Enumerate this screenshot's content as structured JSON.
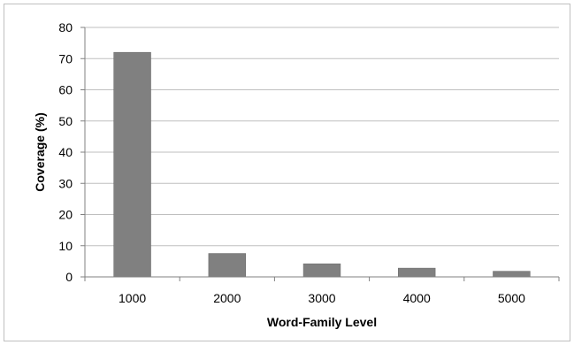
{
  "chart_data": {
    "type": "bar",
    "categories": [
      "1000",
      "2000",
      "3000",
      "4000",
      "5000"
    ],
    "values": [
      72,
      7.5,
      4.2,
      2.8,
      1.8
    ],
    "xlabel": "Word-Family Level",
    "ylabel": "Coverage (%)",
    "ylim": [
      0,
      80
    ],
    "yticks": [
      0,
      10,
      20,
      30,
      40,
      50,
      60,
      70,
      80
    ],
    "grid": true,
    "legend": "none",
    "colors": {
      "bar": "#808080",
      "bar_edge": "#6e6e6e",
      "grid": "#bfbfbf",
      "axis": "#808080",
      "frame": "#bfbfbf"
    }
  }
}
